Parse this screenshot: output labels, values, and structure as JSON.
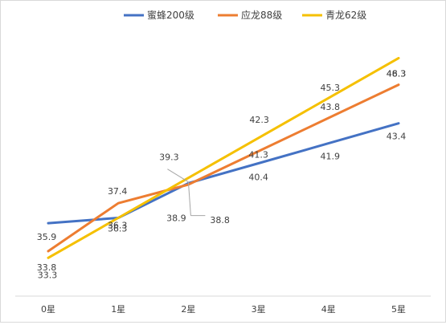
{
  "chart_data": {
    "type": "line",
    "categories": [
      "0星",
      "1星",
      "2星",
      "3星",
      "4星",
      "5星"
    ],
    "legend_position": "top",
    "grid": false,
    "ylim": [
      30,
      52
    ],
    "series": [
      {
        "name": "蜜蜂200级",
        "color": "#4472C4",
        "values": [
          35.9,
          36.3,
          38.9,
          40.4,
          41.9,
          43.4
        ]
      },
      {
        "name": "应龙88级",
        "color": "#ED7D31",
        "values": [
          33.8,
          37.4,
          38.8,
          41.3,
          43.8,
          46.3
        ]
      },
      {
        "name": "青龙62级",
        "color": "#F5C000",
        "values": [
          33.3,
          36.3,
          39.3,
          42.3,
          45.3,
          48.3
        ]
      }
    ],
    "data_labels": [
      {
        "text": "35.9",
        "series": 0,
        "point": 0
      },
      {
        "text": "36.3",
        "series": 0,
        "point": 1
      },
      {
        "text": "38.9",
        "series": 0,
        "point": 2
      },
      {
        "text": "40.4",
        "series": 0,
        "point": 3
      },
      {
        "text": "41.9",
        "series": 0,
        "point": 4
      },
      {
        "text": "43.4",
        "series": 0,
        "point": 5
      },
      {
        "text": "33.8",
        "series": 1,
        "point": 0
      },
      {
        "text": "37.4",
        "series": 1,
        "point": 1
      },
      {
        "text": "38.8",
        "series": 1,
        "point": 2
      },
      {
        "text": "41.3",
        "series": 1,
        "point": 3
      },
      {
        "text": "43.8",
        "series": 1,
        "point": 4
      },
      {
        "text": "46.3",
        "series": 1,
        "point": 5
      },
      {
        "text": "33.3",
        "series": 2,
        "point": 0
      },
      {
        "text": "36.3",
        "series": 2,
        "point": 1
      },
      {
        "text": "39.3",
        "series": 2,
        "point": 2
      },
      {
        "text": "42.3",
        "series": 2,
        "point": 3
      },
      {
        "text": "45.3",
        "series": 2,
        "point": 4
      },
      {
        "text": "48.3",
        "series": 2,
        "point": 5
      }
    ]
  }
}
